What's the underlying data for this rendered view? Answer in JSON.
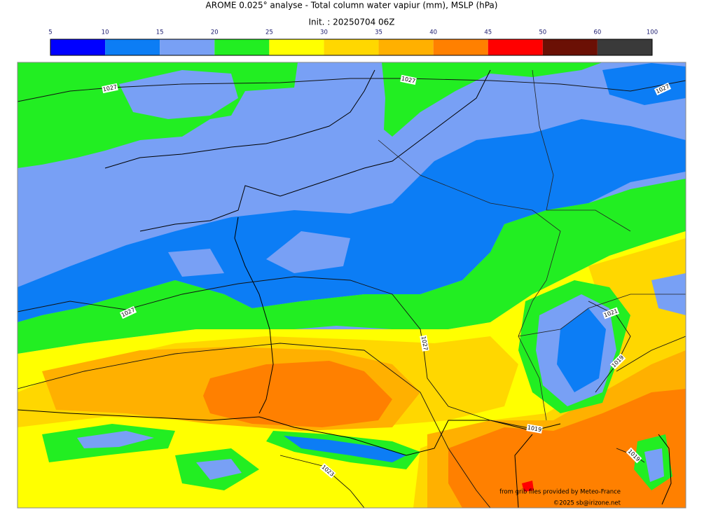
{
  "header": {
    "title": "AROME 0.025° analyse - Total column water vapiur (mm), MSLP (hPa)",
    "init": "Init. : 20250704 06Z"
  },
  "colorbar": {
    "ticks": [
      5,
      10,
      15,
      20,
      25,
      30,
      35,
      40,
      45,
      50,
      60,
      100
    ],
    "colors": [
      "#0000ff",
      "#0c7df5",
      "#78a0f5",
      "#22ee22",
      "#ffff00",
      "#ffd700",
      "#ffb000",
      "#ff8000",
      "#ff0000",
      "#6b1005",
      "#3a3a3a"
    ]
  },
  "isobar_labels": [
    1027,
    1027,
    1027,
    1027,
    1027,
    1021,
    1019,
    1019,
    1023,
    1019
  ],
  "credits": [
    "from grib files provided by Meteo-France",
    "©2025 sb@irizone.net"
  ]
}
